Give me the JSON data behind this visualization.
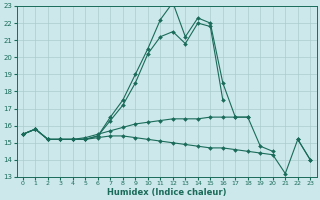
{
  "title": "",
  "xlabel": "Humidex (Indice chaleur)",
  "xlim": [
    -0.5,
    23.5
  ],
  "ylim": [
    13,
    23
  ],
  "yticks": [
    13,
    14,
    15,
    16,
    17,
    18,
    19,
    20,
    21,
    22,
    23
  ],
  "xticks": [
    0,
    1,
    2,
    3,
    4,
    5,
    6,
    7,
    8,
    9,
    10,
    11,
    12,
    13,
    14,
    15,
    16,
    17,
    18,
    19,
    20,
    21,
    22,
    23
  ],
  "bg_color": "#cce8ea",
  "grid_color": "#aacccc",
  "line_color": "#1a6b5a",
  "lines": [
    {
      "comment": "Top rising line - peaks at x=12 ~23.2, x=14~22.2, x=15~22.0",
      "x": [
        0,
        1,
        2,
        3,
        4,
        5,
        6,
        7,
        8,
        9,
        10,
        11,
        12,
        13,
        14,
        15,
        16,
        17,
        18,
        19,
        20,
        21,
        22,
        23
      ],
      "y": [
        15.5,
        15.8,
        15.2,
        15.2,
        15.2,
        15.2,
        15.4,
        16.5,
        17.5,
        19.0,
        20.5,
        22.2,
        23.2,
        21.2,
        22.3,
        22.0,
        18.5,
        16.5,
        16.5,
        null,
        null,
        null,
        null,
        null
      ]
    },
    {
      "comment": "Second line - peaks around x=12 ~21.5, x=14~22.2, x=15~22.0",
      "x": [
        0,
        1,
        2,
        3,
        4,
        5,
        6,
        7,
        8,
        9,
        10,
        11,
        12,
        13,
        14,
        15,
        16,
        17,
        18,
        19,
        20,
        21,
        22,
        23
      ],
      "y": [
        15.5,
        15.8,
        15.2,
        15.2,
        15.2,
        15.2,
        15.4,
        16.3,
        17.2,
        18.5,
        20.2,
        21.2,
        21.5,
        20.8,
        22.0,
        21.8,
        17.5,
        null,
        null,
        null,
        null,
        null,
        null,
        null
      ]
    },
    {
      "x": [
        0,
        1,
        2,
        3,
        4,
        5,
        6,
        7,
        8,
        9,
        10,
        11,
        12,
        13,
        14,
        15,
        16,
        17,
        18,
        19,
        20,
        21,
        22,
        23
      ],
      "y": [
        15.5,
        15.8,
        15.2,
        15.2,
        15.2,
        15.3,
        15.5,
        15.7,
        15.9,
        16.1,
        16.2,
        16.3,
        16.4,
        16.4,
        16.4,
        16.5,
        16.5,
        16.5,
        16.5,
        14.8,
        14.5,
        null,
        15.2,
        14.0
      ]
    },
    {
      "x": [
        0,
        1,
        2,
        3,
        4,
        5,
        6,
        7,
        8,
        9,
        10,
        11,
        12,
        13,
        14,
        15,
        16,
        17,
        18,
        19,
        20,
        21,
        22,
        23
      ],
      "y": [
        15.5,
        15.8,
        15.2,
        15.2,
        15.2,
        15.2,
        15.3,
        15.4,
        15.4,
        15.3,
        15.2,
        15.1,
        15.0,
        14.9,
        14.8,
        14.7,
        14.7,
        14.6,
        14.5,
        14.4,
        14.3,
        13.2,
        15.2,
        14.0
      ]
    }
  ]
}
